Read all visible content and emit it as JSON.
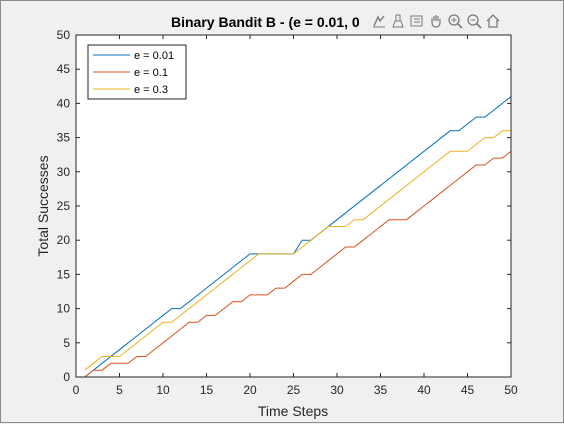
{
  "chart_data": {
    "type": "line",
    "title": "Binary Bandit B - (e = 0.01, 0",
    "xlabel": "Time Steps",
    "ylabel": "Total Successes",
    "xlim": [
      0,
      50
    ],
    "ylim": [
      0,
      50
    ],
    "xticks": [
      0,
      5,
      10,
      15,
      20,
      25,
      30,
      35,
      40,
      45,
      50
    ],
    "yticks": [
      0,
      5,
      10,
      15,
      20,
      25,
      30,
      35,
      40,
      45,
      50
    ],
    "grid": false,
    "legend_position": "top-left",
    "series": [
      {
        "name": "e = 0.01",
        "color": "#0072bd",
        "x": [
          1,
          3,
          11,
          12,
          20,
          21,
          25,
          26,
          27,
          43,
          44,
          46,
          47,
          50
        ],
        "y": [
          0,
          2,
          10,
          10,
          18,
          18,
          18,
          20,
          20,
          36,
          36,
          38,
          38,
          41
        ]
      },
      {
        "name": "e = 0.1",
        "color": "#d95319",
        "x": [
          1,
          2,
          3,
          4,
          5,
          6,
          7,
          8,
          9,
          10,
          11,
          12,
          13,
          14,
          15,
          16,
          17,
          18,
          19,
          20,
          21,
          22,
          23,
          24,
          25,
          26,
          27,
          28,
          29,
          30,
          31,
          32,
          33,
          34,
          35,
          36,
          37,
          38,
          39,
          40,
          41,
          42,
          43,
          44,
          45,
          46,
          47,
          48,
          49,
          50
        ],
        "y": [
          0,
          1,
          1,
          2,
          2,
          2,
          3,
          3,
          4,
          5,
          6,
          7,
          8,
          8,
          9,
          9,
          10,
          11,
          11,
          12,
          12,
          12,
          13,
          13,
          14,
          15,
          15,
          16,
          17,
          18,
          19,
          19,
          20,
          21,
          22,
          23,
          23,
          23,
          24,
          25,
          26,
          27,
          28,
          29,
          30,
          31,
          31,
          32,
          32,
          33
        ]
      },
      {
        "name": "e = 0.3",
        "color": "#edb120",
        "x": [
          1,
          2,
          3,
          4,
          5,
          6,
          7,
          8,
          9,
          10,
          11,
          12,
          13,
          14,
          15,
          16,
          17,
          18,
          19,
          20,
          21,
          22,
          23,
          24,
          25,
          26,
          27,
          28,
          29,
          30,
          31,
          32,
          33,
          34,
          35,
          36,
          37,
          38,
          39,
          40,
          41,
          42,
          43,
          44,
          45,
          46,
          47,
          48,
          49,
          50
        ],
        "y": [
          1,
          2,
          3,
          3,
          3,
          4,
          5,
          6,
          7,
          8,
          8,
          9,
          10,
          11,
          12,
          13,
          14,
          15,
          16,
          17,
          18,
          18,
          18,
          18,
          18,
          19,
          20,
          21,
          22,
          22,
          22,
          23,
          23,
          24,
          25,
          26,
          27,
          28,
          29,
          30,
          31,
          32,
          33,
          33,
          33,
          34,
          35,
          35,
          36,
          36
        ]
      }
    ]
  },
  "toolbar": {
    "icons": [
      "data-tips-icon",
      "brush-icon",
      "link-icon",
      "pan-icon",
      "zoom-in-icon",
      "zoom-out-icon",
      "home-icon"
    ]
  }
}
